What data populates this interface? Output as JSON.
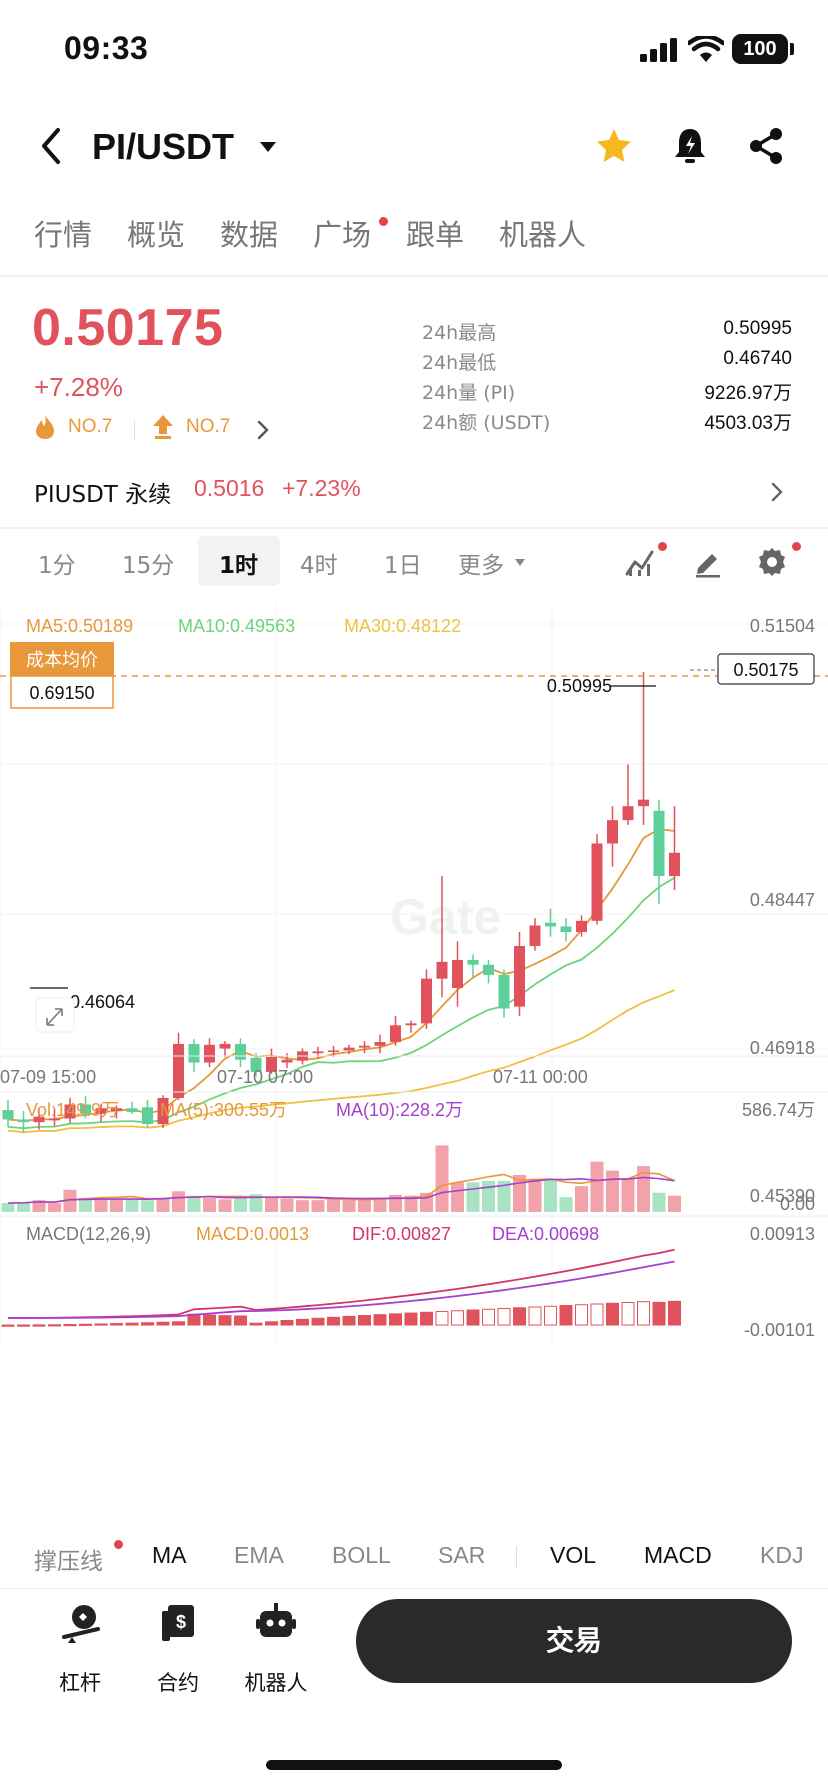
{
  "status_bar": {
    "time": "09:33",
    "battery": "100"
  },
  "header": {
    "pair": "PI/USDT"
  },
  "top_tabs": [
    "行情",
    "概览",
    "数据",
    "广场",
    "跟单",
    "机器人"
  ],
  "ticker": {
    "price": "0.50175",
    "change_pct": "+7.28%",
    "rank_hot": "NO.7",
    "rank_gain": "NO.7",
    "stats": [
      {
        "label": "24h最高",
        "value": "0.50995"
      },
      {
        "label": "24h最低",
        "value": "0.46740"
      },
      {
        "label": "24h量 (PI)",
        "value": "9226.97万"
      },
      {
        "label": "24h额 (USDT)",
        "value": "4503.03万"
      }
    ]
  },
  "perp": {
    "name": "PIUSDT 永续",
    "price": "0.5016",
    "change": "+7.23%"
  },
  "intervals": {
    "items": [
      "1分",
      "15分",
      "1时",
      "4时",
      "1日",
      "更多"
    ],
    "active": "1时"
  },
  "main_chart": {
    "ma5": "MA5:0.50189",
    "ma10": "MA10:0.49563",
    "ma30": "MA30:0.48122",
    "cost_label": "成本均价",
    "cost_value": "0.69150",
    "high_label": "0.50995",
    "low_label": "0.46064",
    "last_price_tag": "0.50175",
    "watermark": "Gate",
    "y_ticks": [
      "0.51504",
      "0.48447",
      "0.46918",
      "0.45390"
    ],
    "x_ticks": [
      "07-09 15:00",
      "07-10 07:00",
      "07-11 00:00"
    ]
  },
  "volume_chart": {
    "vol": "Vol:149.9万",
    "ma5": "MA(5):300.55万",
    "ma10": "MA(10):228.2万",
    "y_top": "586.74万",
    "y_bottom": "0.00"
  },
  "macd_chart": {
    "label": "MACD(12,26,9)",
    "macd": "MACD:0.0013",
    "dif": "DIF:0.00827",
    "dea": "DEA:0.00698",
    "y_top": "0.00913",
    "y_bottom": "-0.00101"
  },
  "indicator_tabs": [
    "撑压线",
    "MA",
    "EMA",
    "BOLL",
    "SAR",
    "VOL",
    "MACD",
    "KDJ"
  ],
  "bottom_bar": {
    "items": [
      "杠杆",
      "合约",
      "机器人"
    ],
    "trade": "交易"
  },
  "colors": {
    "up": "#e0535c",
    "down": "#5fcf9a",
    "ma5": "#e8973a",
    "ma10": "#6cd47a",
    "ma30": "#f0c040",
    "purple": "#a43fcf",
    "accent_orange": "#e8973a"
  },
  "chart_data": {
    "type": "candlestick",
    "candles": [
      {
        "o": 0.4629,
        "h": 0.464,
        "l": 0.4611,
        "c": 0.4619
      },
      {
        "o": 0.4619,
        "h": 0.4628,
        "l": 0.4605,
        "c": 0.4616
      },
      {
        "o": 0.4616,
        "h": 0.463,
        "l": 0.4608,
        "c": 0.4622
      },
      {
        "o": 0.4618,
        "h": 0.4631,
        "l": 0.4612,
        "c": 0.462
      },
      {
        "o": 0.462,
        "h": 0.4642,
        "l": 0.4615,
        "c": 0.4635
      },
      {
        "o": 0.4635,
        "h": 0.4644,
        "l": 0.462,
        "c": 0.4625
      },
      {
        "o": 0.4625,
        "h": 0.4636,
        "l": 0.4616,
        "c": 0.4631
      },
      {
        "o": 0.4628,
        "h": 0.4634,
        "l": 0.462,
        "c": 0.4631
      },
      {
        "o": 0.4631,
        "h": 0.4638,
        "l": 0.4625,
        "c": 0.4627
      },
      {
        "o": 0.4632,
        "h": 0.464,
        "l": 0.461,
        "c": 0.4614
      },
      {
        "o": 0.4614,
        "h": 0.4645,
        "l": 0.461,
        "c": 0.4642
      },
      {
        "o": 0.4642,
        "h": 0.4712,
        "l": 0.464,
        "c": 0.47
      },
      {
        "o": 0.47,
        "h": 0.4705,
        "l": 0.467,
        "c": 0.468
      },
      {
        "o": 0.468,
        "h": 0.4706,
        "l": 0.4675,
        "c": 0.4699
      },
      {
        "o": 0.4695,
        "h": 0.4703,
        "l": 0.4686,
        "c": 0.47
      },
      {
        "o": 0.47,
        "h": 0.4706,
        "l": 0.4675,
        "c": 0.4683
      },
      {
        "o": 0.4685,
        "h": 0.469,
        "l": 0.4665,
        "c": 0.467
      },
      {
        "o": 0.467,
        "h": 0.4695,
        "l": 0.4668,
        "c": 0.4686
      },
      {
        "o": 0.468,
        "h": 0.469,
        "l": 0.4674,
        "c": 0.4683
      },
      {
        "o": 0.4682,
        "h": 0.4695,
        "l": 0.4678,
        "c": 0.4692
      },
      {
        "o": 0.469,
        "h": 0.4697,
        "l": 0.4684,
        "c": 0.4692
      },
      {
        "o": 0.4692,
        "h": 0.4698,
        "l": 0.4686,
        "c": 0.4693
      },
      {
        "o": 0.4693,
        "h": 0.4699,
        "l": 0.4689,
        "c": 0.4696
      },
      {
        "o": 0.4696,
        "h": 0.4703,
        "l": 0.469,
        "c": 0.4698
      },
      {
        "o": 0.4698,
        "h": 0.471,
        "l": 0.469,
        "c": 0.4702
      },
      {
        "o": 0.4702,
        "h": 0.473,
        "l": 0.4698,
        "c": 0.472
      },
      {
        "o": 0.472,
        "h": 0.4725,
        "l": 0.4712,
        "c": 0.4722
      },
      {
        "o": 0.4722,
        "h": 0.478,
        "l": 0.4716,
        "c": 0.477
      },
      {
        "o": 0.477,
        "h": 0.488,
        "l": 0.475,
        "c": 0.4788
      },
      {
        "o": 0.476,
        "h": 0.481,
        "l": 0.474,
        "c": 0.479
      },
      {
        "o": 0.479,
        "h": 0.4796,
        "l": 0.477,
        "c": 0.4785
      },
      {
        "o": 0.4785,
        "h": 0.479,
        "l": 0.4765,
        "c": 0.4774
      },
      {
        "o": 0.4774,
        "h": 0.478,
        "l": 0.4728,
        "c": 0.4738
      },
      {
        "o": 0.474,
        "h": 0.482,
        "l": 0.473,
        "c": 0.4805
      },
      {
        "o": 0.4805,
        "h": 0.4835,
        "l": 0.48,
        "c": 0.4827
      },
      {
        "o": 0.483,
        "h": 0.4845,
        "l": 0.4815,
        "c": 0.4826
      },
      {
        "o": 0.4826,
        "h": 0.4835,
        "l": 0.481,
        "c": 0.482
      },
      {
        "o": 0.482,
        "h": 0.4838,
        "l": 0.4815,
        "c": 0.4832
      },
      {
        "o": 0.4832,
        "h": 0.4925,
        "l": 0.4828,
        "c": 0.4915
      },
      {
        "o": 0.4915,
        "h": 0.4955,
        "l": 0.489,
        "c": 0.494
      },
      {
        "o": 0.494,
        "h": 0.5,
        "l": 0.4935,
        "c": 0.4955
      },
      {
        "o": 0.4955,
        "h": 0.5099,
        "l": 0.4935,
        "c": 0.4962
      },
      {
        "o": 0.495,
        "h": 0.4962,
        "l": 0.485,
        "c": 0.488
      },
      {
        "o": 0.488,
        "h": 0.4955,
        "l": 0.4865,
        "c": 0.4905
      }
    ]
  }
}
